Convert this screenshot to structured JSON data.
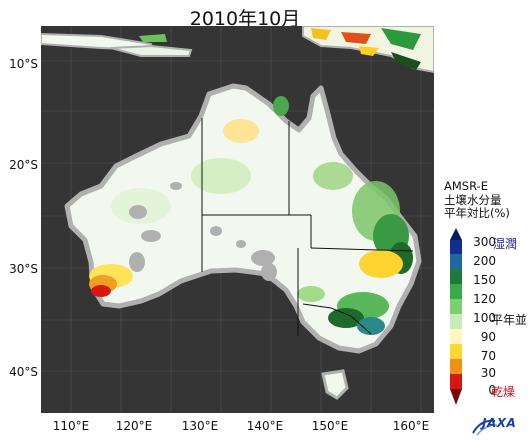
{
  "title": "2010年10月",
  "lat_labels": [
    "10°S",
    "20°S",
    "30°S",
    "40°S"
  ],
  "lon_labels": [
    "110°E",
    "120°E",
    "130°E",
    "140°E",
    "150°E",
    "160°E"
  ],
  "legend": {
    "title_lines": [
      "AMSR-E",
      "土壌水分量",
      "平年対比(%)"
    ],
    "ticks": [
      "300",
      "200",
      "150",
      "120",
      "100",
      "90",
      "70",
      "30",
      "0"
    ],
    "wet_label": "湿潤",
    "normal_label": "平年並",
    "dry_label": "乾燥"
  },
  "colors": {
    "ocean": "#353535",
    "land_normal": "#f2f8ef",
    "wet": "#1e6a2a",
    "dry": "#d41a10",
    "no_data": "#b0b0b0"
  },
  "logo": {
    "icon": "jaxa-logo",
    "text": "JAXA"
  }
}
